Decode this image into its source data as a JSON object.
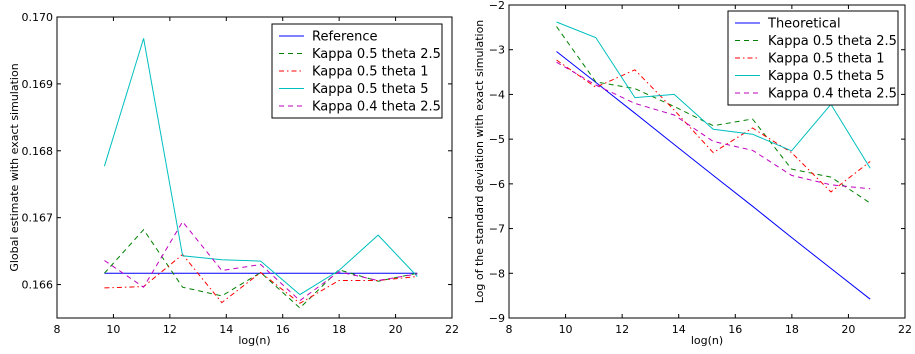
{
  "chart_data": [
    {
      "type": "line",
      "xlabel": "log(n)",
      "ylabel": "Global estimate with exact simulation",
      "xlim": [
        8,
        22
      ],
      "ylim": [
        0.1655,
        0.17
      ],
      "xticks": [
        "8",
        "10",
        "12",
        "14",
        "16",
        "18",
        "20",
        "22"
      ],
      "xtick_values": [
        8,
        10,
        12,
        14,
        16,
        18,
        20,
        22
      ],
      "yticks": [
        "0.166",
        "0.167",
        "0.168",
        "0.169",
        "0.170"
      ],
      "ytick_values": [
        0.166,
        0.167,
        0.168,
        0.169,
        0.17
      ],
      "legend_position": "top-right",
      "x": [
        9.68,
        11.07,
        12.45,
        13.84,
        15.22,
        16.61,
        17.99,
        19.38,
        20.77
      ],
      "series": [
        {
          "name": "Reference",
          "color": "#0000ff",
          "dash": "solid",
          "values": [
            0.16617,
            0.16617,
            0.16617,
            0.16617,
            0.16617,
            0.16617,
            0.16617,
            0.16617,
            0.16617
          ]
        },
        {
          "name": "Kappa 0.5 theta 2.5",
          "color": "#008000",
          "dash": "dashed",
          "values": [
            0.16617,
            0.16682,
            0.16596,
            0.16583,
            0.16618,
            0.16565,
            0.16622,
            0.16605,
            0.16617
          ]
        },
        {
          "name": "Kappa 0.5 theta 1",
          "color": "#ff0000",
          "dash": "dashdot",
          "values": [
            0.16595,
            0.16597,
            0.16645,
            0.16573,
            0.16618,
            0.16572,
            0.16606,
            0.16606,
            0.16612
          ]
        },
        {
          "name": "Kappa 0.5 theta 5",
          "color": "#00bfbf",
          "dash": "solid",
          "values": [
            0.16777,
            0.16968,
            0.16643,
            0.16637,
            0.16635,
            0.16585,
            0.16621,
            0.16674,
            0.16612
          ]
        },
        {
          "name": "Kappa 0.4 theta 2.5",
          "color": "#bf00bf",
          "dash": "dashed",
          "values": [
            0.16636,
            0.16596,
            0.16694,
            0.16621,
            0.1663,
            0.16576,
            0.16619,
            0.16606,
            0.16616
          ]
        }
      ]
    },
    {
      "type": "line",
      "xlabel": "log(n)",
      "ylabel": "Log of the standard deviation with exact simulation",
      "xlim": [
        8,
        22
      ],
      "ylim": [
        -9,
        -2
      ],
      "xticks": [
        "8",
        "10",
        "12",
        "14",
        "16",
        "18",
        "20",
        "22"
      ],
      "xtick_values": [
        8,
        10,
        12,
        14,
        16,
        18,
        20,
        22
      ],
      "yticks": [
        "−9",
        "−8",
        "−7",
        "−6",
        "−5",
        "−4",
        "−3",
        "−2"
      ],
      "ytick_values": [
        -9,
        -8,
        -7,
        -6,
        -5,
        -4,
        -3,
        -2
      ],
      "legend_position": "top-right",
      "x": [
        9.68,
        11.07,
        12.45,
        13.84,
        15.22,
        16.61,
        17.99,
        19.38,
        20.77
      ],
      "series": [
        {
          "name": "Theoretical",
          "color": "#0000ff",
          "dash": "solid",
          "values": [
            -3.04,
            -3.73,
            -4.42,
            -5.12,
            -5.81,
            -6.5,
            -7.2,
            -7.89,
            -8.58
          ]
        },
        {
          "name": "Kappa 0.5 theta 2.5",
          "color": "#008000",
          "dash": "dashed",
          "values": [
            -2.48,
            -3.72,
            -3.87,
            -4.27,
            -4.7,
            -4.55,
            -5.67,
            -5.85,
            -6.43
          ]
        },
        {
          "name": "Kappa 0.5 theta 1",
          "color": "#ff0000",
          "dash": "dashdot",
          "values": [
            -3.23,
            -3.84,
            -3.45,
            -4.35,
            -5.3,
            -4.75,
            -5.3,
            -6.18,
            -5.5
          ]
        },
        {
          "name": "Kappa 0.5 theta 5",
          "color": "#00bfbf",
          "dash": "solid",
          "values": [
            -2.38,
            -2.73,
            -4.07,
            -4.0,
            -4.78,
            -4.89,
            -5.26,
            -4.22,
            -5.65
          ]
        },
        {
          "name": "Kappa 0.4 theta 2.5",
          "color": "#bf00bf",
          "dash": "dashed",
          "values": [
            -3.28,
            -3.79,
            -4.2,
            -4.46,
            -5.05,
            -5.25,
            -5.81,
            -6.02,
            -6.11
          ]
        }
      ]
    }
  ]
}
